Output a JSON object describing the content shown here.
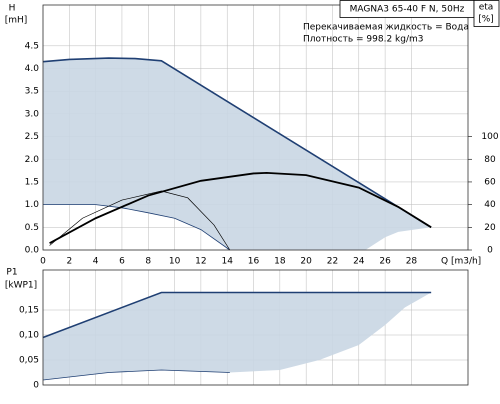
{
  "chart_data": [
    {
      "type": "line",
      "title": "MAGNA3 65-40 F N, 50Hz",
      "ylabel": "H",
      "yunit": "[mH]",
      "y2label": "eta",
      "y2unit": "[%]",
      "xlabel": "Q [m3/h]",
      "annotations": [
        "Перекачиваемая жидкость = Вода",
        "Плотность = 998.2 kg/m3"
      ],
      "xlim": [
        0,
        32.3
      ],
      "xticks": [
        0,
        2,
        4,
        6,
        8,
        10,
        12,
        14,
        16,
        18,
        20,
        22,
        24,
        26,
        28
      ],
      "show_xtick_labels": true,
      "ylim": [
        0,
        5.4
      ],
      "yticks": [
        {
          "value": 0,
          "label": "0.0"
        },
        0.5,
        {
          "value": 1,
          "label": "1.0"
        },
        1.5,
        {
          "value": 2,
          "label": "2.0"
        },
        2.5,
        {
          "value": 3,
          "label": "3.0"
        },
        3.5,
        {
          "value": 4,
          "label": "4.0"
        },
        4.5
      ],
      "y2lim": [
        0,
        216
      ],
      "y2ticks": [
        0,
        20,
        40,
        60,
        80,
        100
      ],
      "grid": true,
      "series": [
        {
          "kind": "area",
          "color": "#c9d6e3",
          "x": [
            0,
            2,
            5,
            7,
            9,
            29.5,
            27,
            26,
            24.5,
            14.2,
            12,
            10,
            8,
            6,
            4,
            0
          ],
          "values": [
            4.15,
            4.2,
            4.23,
            4.22,
            4.17,
            0.5,
            0.4,
            0.28,
            0,
            0,
            0.45,
            0.7,
            0.82,
            0.93,
            1.0,
            1.0
          ]
        },
        {
          "kind": "line",
          "color": "#1f3f73",
          "width": 1.6,
          "x": [
            0,
            2,
            5,
            7,
            9,
            29.5
          ],
          "values": [
            4.15,
            4.2,
            4.23,
            4.22,
            4.17,
            0.5
          ]
        },
        {
          "kind": "line",
          "color": "#1f3f73",
          "width": 0.8,
          "x": [
            0,
            4,
            6,
            8,
            10,
            12,
            14.2
          ],
          "values": [
            1.0,
            1.0,
            0.93,
            0.82,
            0.7,
            0.45,
            0
          ]
        },
        {
          "kind": "line",
          "color": "#000000",
          "width": 1.8,
          "axis": "y2",
          "x": [
            0.5,
            4,
            8,
            12,
            16,
            17,
            20,
            24,
            27,
            29.5
          ],
          "values": [
            6,
            28,
            48,
            61,
            67.5,
            68,
            66,
            55,
            38,
            20
          ]
        },
        {
          "kind": "line",
          "color": "#000000",
          "width": 0.7,
          "axis": "y2",
          "x": [
            0.5,
            3,
            6,
            9,
            11,
            13,
            14.2
          ],
          "values": [
            4,
            28,
            44,
            52,
            46,
            22,
            0
          ]
        }
      ]
    },
    {
      "type": "line",
      "ylabel": "P1",
      "yunit": "[kWP1]",
      "xlim": [
        0,
        32.3
      ],
      "xticks": [
        0,
        2,
        4,
        6,
        8,
        10,
        12,
        14,
        16,
        18,
        20,
        22,
        24,
        26,
        28
      ],
      "show_xtick_labels": false,
      "ylim": [
        0,
        0.23
      ],
      "yticks": [
        0,
        {
          "value": 0.05,
          "label": "0,05"
        },
        {
          "value": 0.1,
          "label": "0,10"
        },
        {
          "value": 0.15,
          "label": "0,15"
        }
      ],
      "grid": true,
      "series": [
        {
          "kind": "area",
          "color": "#c9d6e3",
          "x": [
            0,
            9,
            29.5,
            27.5,
            26,
            24,
            21,
            18,
            14.2,
            9,
            5,
            0
          ],
          "values": [
            0.095,
            0.185,
            0.185,
            0.155,
            0.12,
            0.08,
            0.05,
            0.03,
            0.025,
            0.03,
            0.025,
            0.01
          ]
        },
        {
          "kind": "line",
          "color": "#1f3f73",
          "width": 1.6,
          "x": [
            0,
            9,
            29.5
          ],
          "values": [
            0.095,
            0.185,
            0.185
          ]
        },
        {
          "kind": "line",
          "color": "#1f3f73",
          "width": 0.8,
          "x": [
            0,
            5,
            9,
            14.2
          ],
          "values": [
            0.01,
            0.025,
            0.03,
            0.025
          ]
        }
      ]
    }
  ]
}
